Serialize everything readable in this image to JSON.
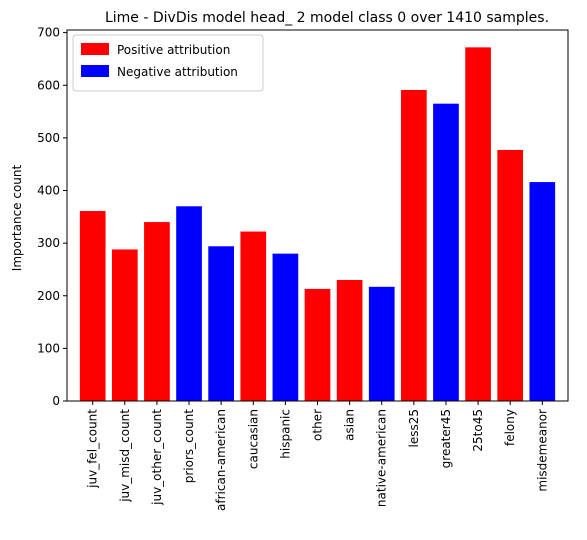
{
  "chart_data": {
    "type": "bar",
    "title": "Lime - DivDis model head_ 2 model class 0 over 1410 samples.",
    "xlabel": "",
    "ylabel": "Importance count",
    "ylim": [
      0,
      705
    ],
    "yticks": [
      0,
      100,
      200,
      300,
      400,
      500,
      600,
      700
    ],
    "categories": [
      "juv_fel_count",
      "juv_misd_count",
      "juv_other_count",
      "priors_count",
      "african-american",
      "caucasian",
      "hispanic",
      "other",
      "asian",
      "native-american",
      "less25",
      "greater45",
      "25to45",
      "felony",
      "misdemeanor"
    ],
    "values": [
      361,
      288,
      340,
      370,
      294,
      322,
      280,
      213,
      230,
      217,
      591,
      565,
      672,
      477,
      416
    ],
    "attribution": [
      "positive",
      "positive",
      "positive",
      "negative",
      "negative",
      "positive",
      "negative",
      "positive",
      "positive",
      "negative",
      "positive",
      "negative",
      "positive",
      "positive",
      "negative"
    ],
    "colors": {
      "positive": "#ff0000",
      "negative": "#0000ff"
    },
    "legend": {
      "position": "top-left",
      "entries": [
        {
          "key": "positive",
          "label": "Positive attribution"
        },
        {
          "key": "negative",
          "label": "Negative attribution"
        }
      ]
    },
    "grid": false
  }
}
